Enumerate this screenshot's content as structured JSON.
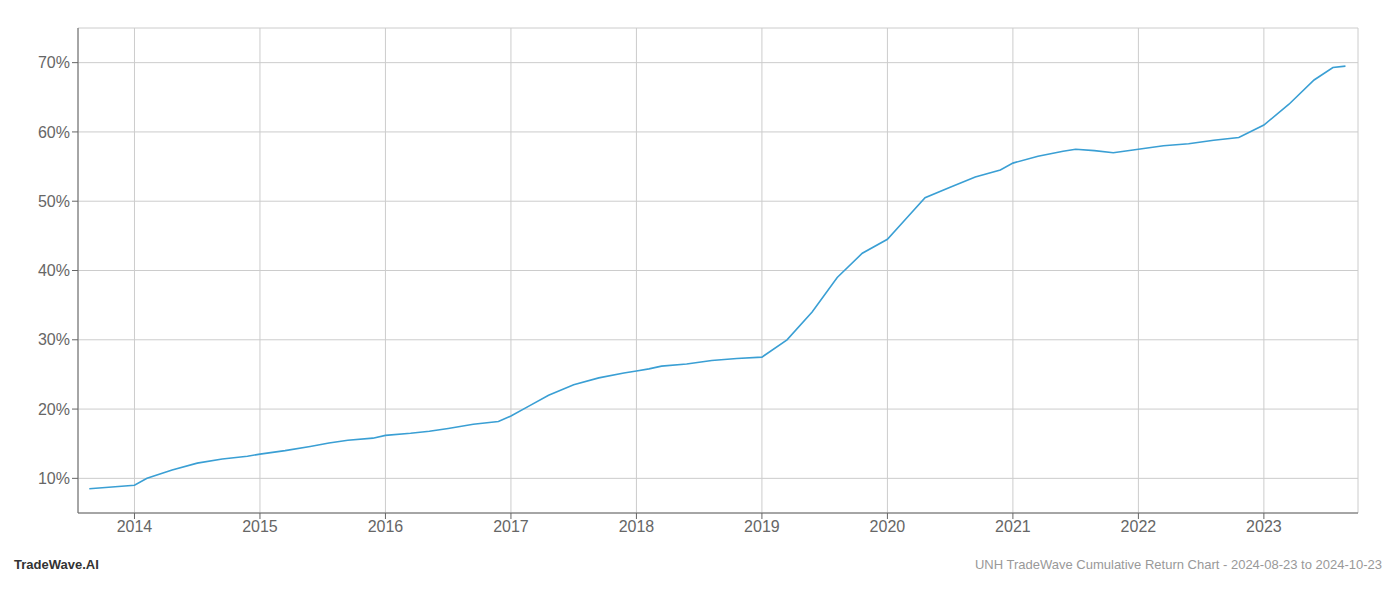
{
  "chart_data": {
    "type": "line",
    "x": [
      2013.64,
      2014.0,
      2014.1,
      2014.3,
      2014.5,
      2014.7,
      2014.9,
      2015.0,
      2015.2,
      2015.4,
      2015.55,
      2015.7,
      2015.9,
      2016.0,
      2016.2,
      2016.35,
      2016.5,
      2016.7,
      2016.9,
      2017.0,
      2017.15,
      2017.3,
      2017.5,
      2017.7,
      2017.9,
      2018.0,
      2018.1,
      2018.2,
      2018.4,
      2018.6,
      2018.8,
      2019.0,
      2019.2,
      2019.4,
      2019.6,
      2019.8,
      2020.0,
      2020.15,
      2020.3,
      2020.5,
      2020.7,
      2020.9,
      2021.0,
      2021.2,
      2021.4,
      2021.5,
      2021.65,
      2021.8,
      2022.0,
      2022.2,
      2022.4,
      2022.6,
      2022.8,
      2023.0,
      2023.2,
      2023.4,
      2023.55,
      2023.65
    ],
    "values": [
      8.5,
      9.0,
      10.0,
      11.2,
      12.2,
      12.8,
      13.2,
      13.5,
      14.0,
      14.6,
      15.1,
      15.5,
      15.8,
      16.2,
      16.5,
      16.8,
      17.2,
      17.8,
      18.2,
      19.0,
      20.5,
      22.0,
      23.5,
      24.5,
      25.2,
      25.5,
      25.8,
      26.2,
      26.5,
      27.0,
      27.3,
      27.5,
      30.0,
      34.0,
      39.0,
      42.5,
      44.5,
      47.5,
      50.5,
      52.0,
      53.5,
      54.5,
      55.5,
      56.5,
      57.2,
      57.5,
      57.3,
      57.0,
      57.5,
      58.0,
      58.3,
      58.8,
      59.2,
      61.0,
      64.0,
      67.5,
      69.3,
      69.5
    ],
    "color": "#3a9fd4",
    "xlim": [
      2013.55,
      2023.75
    ],
    "xticks": [
      2014,
      2015,
      2016,
      2017,
      2018,
      2019,
      2020,
      2021,
      2022,
      2023
    ],
    "ylim": [
      5,
      75
    ],
    "yticks": [
      {
        "value": 10,
        "label": "10%"
      },
      {
        "value": 20,
        "label": "20%"
      },
      {
        "value": 30,
        "label": "30%"
      },
      {
        "value": 40,
        "label": "40%"
      },
      {
        "value": 50,
        "label": "50%"
      },
      {
        "value": 60,
        "label": "60%"
      },
      {
        "value": 70,
        "label": "70%"
      }
    ],
    "grid": true,
    "annotations": [
      "TradeWave.AI",
      "UNH TradeWave Cumulative Return Chart - 2024-08-23 to 2024-10-23"
    ]
  }
}
